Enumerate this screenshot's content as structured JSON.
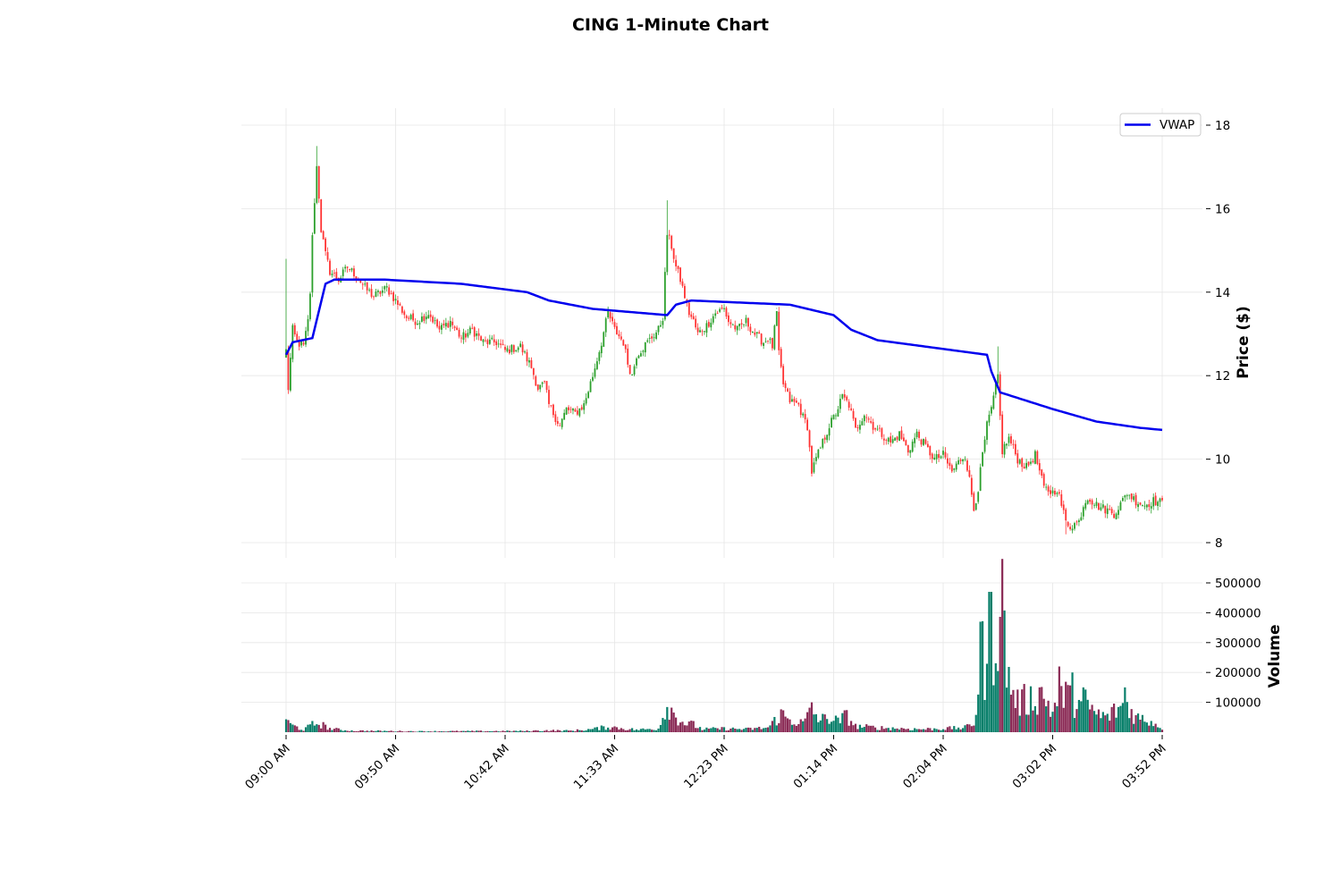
{
  "chart_data": {
    "type": "candlestick",
    "title": "CING 1-Minute Chart",
    "price_panel": {
      "ylabel": "Price ($)",
      "ylim": [
        7.3,
        18.4
      ],
      "yticks": [
        8,
        10,
        12,
        14,
        16,
        18
      ],
      "grid": true,
      "legend": {
        "placement": "top-right",
        "entries": [
          {
            "name": "VWAP",
            "color": "#0000ee"
          }
        ]
      },
      "up_color": "#2ca02c",
      "down_color": "#ff3333",
      "close_anchors": [
        [
          0,
          12.6
        ],
        [
          1,
          11.7
        ],
        [
          3,
          13.1
        ],
        [
          5,
          12.8
        ],
        [
          8,
          12.7
        ],
        [
          10,
          13.3
        ],
        [
          11,
          14.0
        ],
        [
          12,
          15.3
        ],
        [
          13,
          16.2
        ],
        [
          14,
          17.0
        ],
        [
          15,
          16.3
        ],
        [
          16,
          15.5
        ],
        [
          18,
          14.9
        ],
        [
          20,
          14.5
        ],
        [
          24,
          14.3
        ],
        [
          28,
          14.6
        ],
        [
          32,
          14.4
        ],
        [
          36,
          14.1
        ],
        [
          40,
          13.9
        ],
        [
          46,
          14.1
        ],
        [
          50,
          13.8
        ],
        [
          55,
          13.4
        ],
        [
          60,
          13.3
        ],
        [
          65,
          13.5
        ],
        [
          70,
          13.1
        ],
        [
          75,
          13.3
        ],
        [
          80,
          12.9
        ],
        [
          85,
          13.1
        ],
        [
          90,
          12.8
        ],
        [
          96,
          12.8
        ],
        [
          100,
          12.6
        ],
        [
          107,
          12.7
        ],
        [
          112,
          12.2
        ],
        [
          115,
          11.7
        ],
        [
          118,
          11.8
        ],
        [
          120,
          11.3
        ],
        [
          122,
          11.1
        ],
        [
          125,
          10.8
        ],
        [
          128,
          11.2
        ],
        [
          132,
          11.1
        ],
        [
          136,
          11.3
        ],
        [
          140,
          12.0
        ],
        [
          144,
          12.8
        ],
        [
          147,
          13.5
        ],
        [
          150,
          13.1
        ],
        [
          154,
          12.8
        ],
        [
          156,
          12.3
        ],
        [
          158,
          12.0
        ],
        [
          160,
          12.5
        ],
        [
          165,
          12.8
        ],
        [
          170,
          13.1
        ],
        [
          172,
          13.4
        ],
        [
          174,
          15.4
        ],
        [
          176,
          15.1
        ],
        [
          178,
          14.6
        ],
        [
          180,
          14.3
        ],
        [
          182,
          13.9
        ],
        [
          184,
          13.5
        ],
        [
          186,
          13.3
        ],
        [
          188,
          13.0
        ],
        [
          192,
          13.2
        ],
        [
          196,
          13.5
        ],
        [
          200,
          13.6
        ],
        [
          202,
          13.3
        ],
        [
          206,
          13.1
        ],
        [
          210,
          13.3
        ],
        [
          214,
          13.0
        ],
        [
          218,
          12.8
        ],
        [
          220,
          12.9
        ],
        [
          222,
          12.7
        ],
        [
          224,
          13.5
        ],
        [
          225,
          12.5
        ],
        [
          227,
          11.8
        ],
        [
          230,
          11.4
        ],
        [
          234,
          11.3
        ],
        [
          236,
          11.0
        ],
        [
          238,
          10.8
        ],
        [
          240,
          9.7
        ],
        [
          242,
          10.0
        ],
        [
          245,
          10.4
        ],
        [
          248,
          10.8
        ],
        [
          251,
          11.1
        ],
        [
          254,
          11.5
        ],
        [
          257,
          11.3
        ],
        [
          260,
          10.7
        ],
        [
          264,
          11.1
        ],
        [
          268,
          10.8
        ],
        [
          272,
          10.6
        ],
        [
          276,
          10.4
        ],
        [
          280,
          10.6
        ],
        [
          284,
          10.2
        ],
        [
          288,
          10.6
        ],
        [
          292,
          10.3
        ],
        [
          296,
          10.0
        ],
        [
          300,
          10.1
        ],
        [
          304,
          9.7
        ],
        [
          308,
          10.0
        ],
        [
          310,
          10.1
        ],
        [
          312,
          9.5
        ],
        [
          314,
          8.8
        ],
        [
          316,
          9.3
        ],
        [
          318,
          10.1
        ],
        [
          320,
          10.8
        ],
        [
          322,
          11.2
        ],
        [
          324,
          11.7
        ],
        [
          325,
          12.0
        ],
        [
          326,
          11.0
        ],
        [
          327,
          10.2
        ],
        [
          330,
          10.5
        ],
        [
          334,
          10.0
        ],
        [
          338,
          9.8
        ],
        [
          342,
          10.1
        ],
        [
          346,
          9.3
        ],
        [
          350,
          9.2
        ],
        [
          352,
          9.3
        ],
        [
          354,
          8.9
        ],
        [
          356,
          8.5
        ],
        [
          358,
          8.4
        ],
        [
          362,
          8.5
        ],
        [
          364,
          8.9
        ],
        [
          366,
          9.1
        ],
        [
          370,
          8.9
        ],
        [
          374,
          8.8
        ],
        [
          378,
          8.7
        ],
        [
          382,
          9.0
        ],
        [
          384,
          9.2
        ],
        [
          388,
          9.0
        ],
        [
          392,
          8.9
        ],
        [
          396,
          9.0
        ],
        [
          400,
          8.95
        ]
      ],
      "wick_spikes": [
        [
          0,
          14.8
        ],
        [
          14,
          17.5
        ],
        [
          174,
          16.2
        ],
        [
          325,
          12.7
        ],
        [
          224,
          13.6
        ],
        [
          356,
          8.2
        ]
      ],
      "vwap_anchors": [
        [
          0,
          12.5
        ],
        [
          3,
          12.8
        ],
        [
          12,
          12.9
        ],
        [
          18,
          14.2
        ],
        [
          22,
          14.3
        ],
        [
          45,
          14.3
        ],
        [
          80,
          14.2
        ],
        [
          110,
          14.0
        ],
        [
          120,
          13.8
        ],
        [
          140,
          13.6
        ],
        [
          174,
          13.45
        ],
        [
          178,
          13.7
        ],
        [
          185,
          13.8
        ],
        [
          230,
          13.7
        ],
        [
          250,
          13.45
        ],
        [
          258,
          13.1
        ],
        [
          270,
          12.85
        ],
        [
          320,
          12.5
        ],
        [
          322,
          12.1
        ],
        [
          326,
          11.6
        ],
        [
          350,
          11.2
        ],
        [
          370,
          10.9
        ],
        [
          390,
          10.75
        ],
        [
          400,
          10.7
        ]
      ]
    },
    "volume_panel": {
      "ylabel": "Volume",
      "ylim": [
        0,
        500000
      ],
      "yticks": [
        100000,
        200000,
        300000,
        400000,
        500000
      ],
      "grid": true,
      "bar_colors": [
        "#087f6a",
        "#8a2a55"
      ],
      "anchors": [
        [
          0,
          45000
        ],
        [
          1,
          30000
        ],
        [
          3,
          22000
        ],
        [
          8,
          8000
        ],
        [
          12,
          25000
        ],
        [
          15,
          30000
        ],
        [
          20,
          12000
        ],
        [
          25,
          8000
        ],
        [
          30,
          5000
        ],
        [
          60,
          3000
        ],
        [
          110,
          4000
        ],
        [
          118,
          6000
        ],
        [
          130,
          5000
        ],
        [
          140,
          10000
        ],
        [
          147,
          18000
        ],
        [
          160,
          8000
        ],
        [
          170,
          12000
        ],
        [
          173,
          80000
        ],
        [
          175,
          90000
        ],
        [
          177,
          60000
        ],
        [
          182,
          30000
        ],
        [
          186,
          25000
        ],
        [
          190,
          10000
        ],
        [
          200,
          12000
        ],
        [
          210,
          10000
        ],
        [
          220,
          15000
        ],
        [
          226,
          60000
        ],
        [
          230,
          40000
        ],
        [
          236,
          30000
        ],
        [
          240,
          70000
        ],
        [
          244,
          40000
        ],
        [
          248,
          50000
        ],
        [
          252,
          35000
        ],
        [
          256,
          55000
        ],
        [
          260,
          20000
        ],
        [
          270,
          15000
        ],
        [
          290,
          10000
        ],
        [
          300,
          12000
        ],
        [
          310,
          15000
        ],
        [
          314,
          30000
        ],
        [
          318,
          250000
        ],
        [
          320,
          200000
        ],
        [
          322,
          280000
        ],
        [
          325,
          390000
        ],
        [
          327,
          420000
        ],
        [
          330,
          170000
        ],
        [
          334,
          100000
        ],
        [
          340,
          110000
        ],
        [
          345,
          130000
        ],
        [
          350,
          70000
        ],
        [
          355,
          140000
        ],
        [
          360,
          80000
        ],
        [
          365,
          100000
        ],
        [
          370,
          60000
        ],
        [
          375,
          50000
        ],
        [
          380,
          80000
        ],
        [
          384,
          90000
        ],
        [
          388,
          50000
        ],
        [
          394,
          40000
        ],
        [
          400,
          15000
        ]
      ],
      "spikes": [
        [
          321,
          470000
        ],
        [
          322,
          470000
        ],
        [
          317,
          370000
        ],
        [
          353,
          220000
        ],
        [
          364,
          150000
        ],
        [
          359,
          200000
        ],
        [
          383,
          150000
        ],
        [
          240,
          100000
        ]
      ]
    },
    "x_axis": {
      "n_bars": 401,
      "tick_bars": [
        0,
        50,
        100,
        150,
        200,
        250,
        300,
        350,
        400
      ],
      "tick_labels": [
        "09:00 AM",
        "09:50 AM",
        "10:42 AM",
        "11:33 AM",
        "12:23 PM",
        "01:14 PM",
        "02:04 PM",
        "03:02 PM",
        "03:52 PM"
      ]
    }
  }
}
